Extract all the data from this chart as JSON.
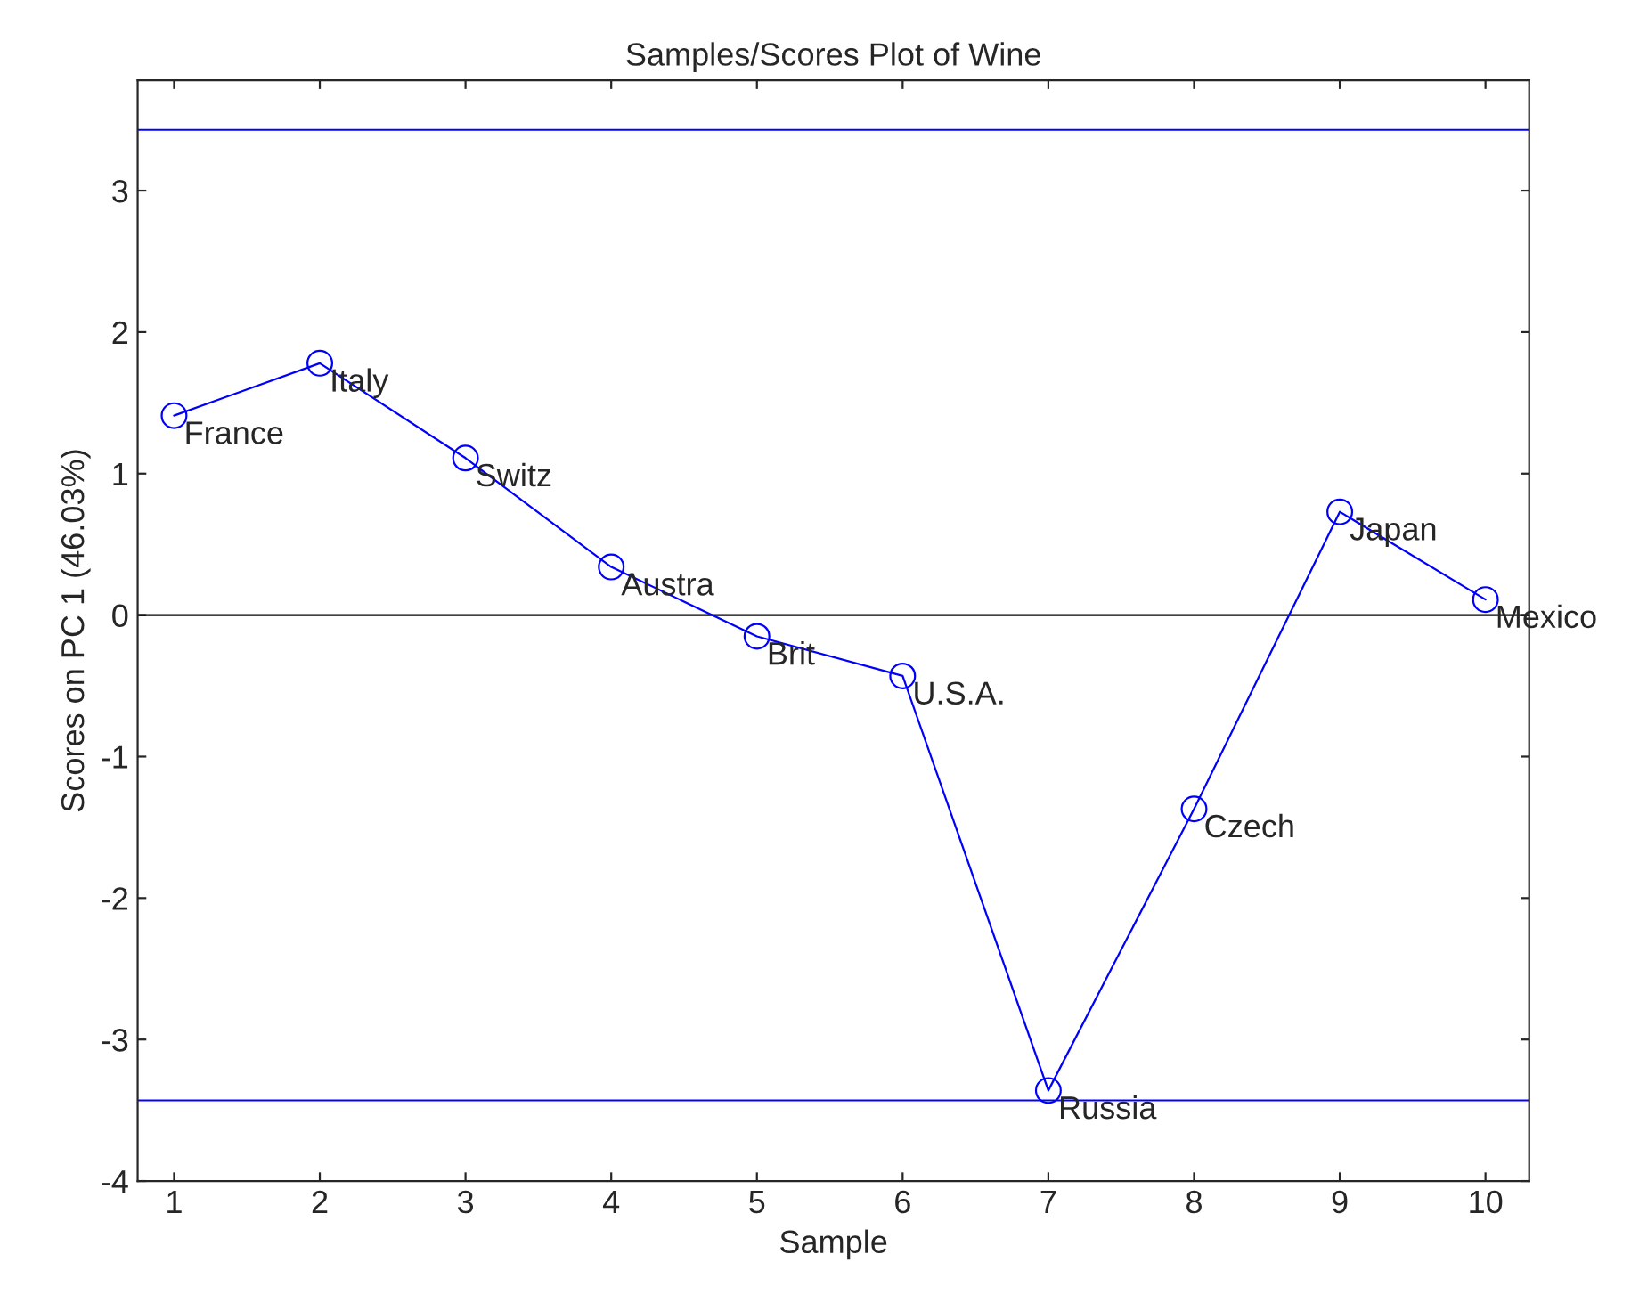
{
  "chart_data": {
    "type": "line",
    "title": "Samples/Scores Plot of Wine",
    "xlabel": "Sample",
    "ylabel": "Scores on PC 1 (46.03%)",
    "x": [
      1,
      2,
      3,
      4,
      5,
      6,
      7,
      8,
      9,
      10
    ],
    "series": [
      {
        "color": "#0000ff",
        "values": [
          1.41,
          1.78,
          1.11,
          0.34,
          -0.15,
          -0.43,
          -3.36,
          -1.37,
          0.73,
          0.11
        ]
      }
    ],
    "marker": "circle",
    "line_style": "solid",
    "grid": false,
    "legend": false,
    "xlim": [
      0.75,
      10.3
    ],
    "xticks": [
      1,
      2,
      3,
      4,
      5,
      6,
      7,
      8,
      9,
      10
    ],
    "ylim": [
      -4,
      3.78
    ],
    "yticks": [
      -4,
      -3,
      -2,
      -1,
      0,
      1,
      2,
      3
    ],
    "ref_lines": [
      {
        "axis": "y",
        "value": 3.43,
        "color": "#0000ff",
        "line_style": "solid"
      },
      {
        "axis": "y",
        "value": 0,
        "color": "#000000",
        "line_style": "solid"
      },
      {
        "axis": "y",
        "value": -3.43,
        "color": "#0000ff",
        "line_style": "solid"
      }
    ],
    "annotations": [
      {
        "text": "France",
        "x": 1,
        "y": 1.41
      },
      {
        "text": "Italy",
        "x": 2,
        "y": 1.78
      },
      {
        "text": "Switz",
        "x": 3,
        "y": 1.11
      },
      {
        "text": "Austra",
        "x": 4,
        "y": 0.34
      },
      {
        "text": "Brit",
        "x": 5,
        "y": -0.15
      },
      {
        "text": "U.S.A.",
        "x": 6,
        "y": -0.43
      },
      {
        "text": "Russia",
        "x": 7,
        "y": -3.36
      },
      {
        "text": "Czech",
        "x": 8,
        "y": -1.37
      },
      {
        "text": "Japan",
        "x": 9,
        "y": 0.73
      },
      {
        "text": "Mexico",
        "x": 10,
        "y": 0.11
      }
    ]
  }
}
